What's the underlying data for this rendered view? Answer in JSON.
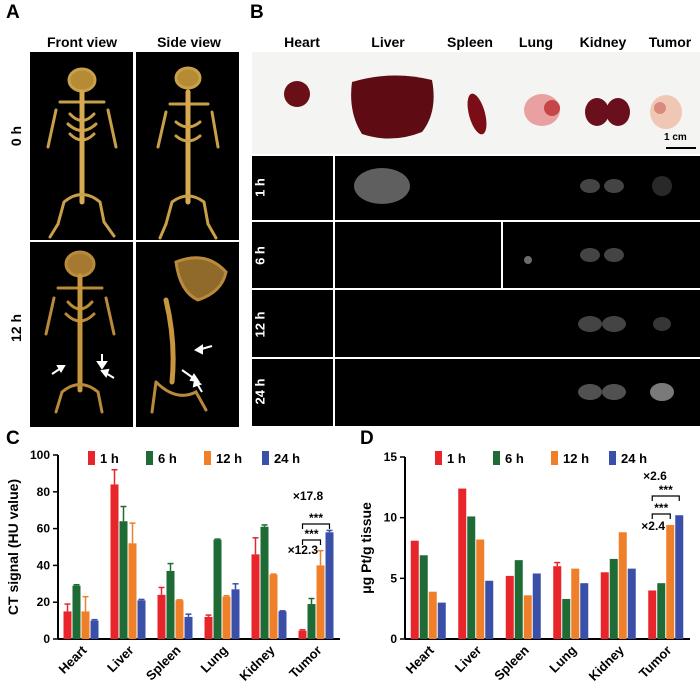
{
  "panels": {
    "A": {
      "label": "A",
      "columns": [
        "Front view",
        "Side view"
      ],
      "rows": [
        "0 h",
        "12 h"
      ]
    },
    "B": {
      "label": "B",
      "organs": [
        "Heart",
        "Liver",
        "Spleen",
        "Lung",
        "Kidney",
        "Tumor"
      ],
      "rows": [
        "1 h",
        "6 h",
        "12 h",
        "24 h"
      ],
      "scalebar": "1 cm"
    }
  },
  "chart_data": [
    {
      "panel": "C",
      "type": "bar",
      "ylabel": "CT signal (HU value)",
      "ylim": [
        0,
        100
      ],
      "yticks": [
        0,
        20,
        40,
        60,
        80,
        100
      ],
      "categories": [
        "Heart",
        "Liver",
        "Spleen",
        "Lung",
        "Kidney",
        "Tumor"
      ],
      "legend_position": "top",
      "series": [
        {
          "name": "1 h",
          "color": "#e8252a",
          "values": [
            15,
            84,
            24,
            12,
            46,
            4.5
          ],
          "errors": [
            4,
            8,
            4,
            1,
            9,
            0.5
          ]
        },
        {
          "name": "6 h",
          "color": "#1e6b35",
          "values": [
            29,
            64,
            37,
            54,
            61,
            19
          ],
          "errors": [
            0.5,
            8,
            4,
            0.3,
            1,
            3
          ]
        },
        {
          "name": "12 h",
          "color": "#f07f2a",
          "values": [
            15,
            52,
            21,
            23,
            35,
            40
          ],
          "errors": [
            8,
            11,
            0.3,
            0.5,
            0.3,
            8
          ]
        },
        {
          "name": "24 h",
          "color": "#3a4fa8",
          "values": [
            10,
            21,
            12,
            27,
            15,
            58
          ],
          "errors": [
            0.5,
            0.5,
            1.5,
            3,
            0.3,
            1
          ]
        }
      ],
      "annotations": {
        "stars_upper": "***",
        "fold_upper": "×17.8",
        "stars_lower": "***",
        "fold_lower": "×12.3"
      }
    },
    {
      "panel": "D",
      "type": "bar",
      "ylabel": "μg Pt/g tissue",
      "ylim": [
        0,
        15
      ],
      "yticks": [
        0,
        5,
        10,
        15
      ],
      "categories": [
        "Heart",
        "Liver",
        "Spleen",
        "Lung",
        "Kidney",
        "Tumor"
      ],
      "legend_position": "top",
      "series": [
        {
          "name": "1 h",
          "color": "#e8252a",
          "values": [
            8.1,
            12.4,
            5.2,
            6.0,
            5.5,
            4.0
          ],
          "errors": [
            0.2,
            0.05,
            0.05,
            0.3,
            0.05,
            0.1
          ]
        },
        {
          "name": "6 h",
          "color": "#1e6b35",
          "values": [
            6.9,
            10.1,
            6.5,
            3.3,
            6.6,
            4.6
          ],
          "errors": [
            0.05,
            0.05,
            0.05,
            0.1,
            0.05,
            0.1
          ]
        },
        {
          "name": "12 h",
          "color": "#f07f2a",
          "values": [
            3.9,
            8.2,
            3.6,
            5.8,
            8.8,
            9.4
          ],
          "errors": [
            0.05,
            0.05,
            0.05,
            0.05,
            0.05,
            0.05
          ]
        },
        {
          "name": "24 h",
          "color": "#3a4fa8",
          "values": [
            3.0,
            4.8,
            5.4,
            4.6,
            5.8,
            10.2
          ],
          "errors": [
            0.05,
            0.05,
            0.05,
            0.05,
            0.05,
            0.05
          ]
        }
      ],
      "annotations": {
        "fold_upper": "×2.6",
        "stars_upper": "***",
        "stars_lower": "***",
        "fold_lower": "×2.4"
      }
    }
  ]
}
